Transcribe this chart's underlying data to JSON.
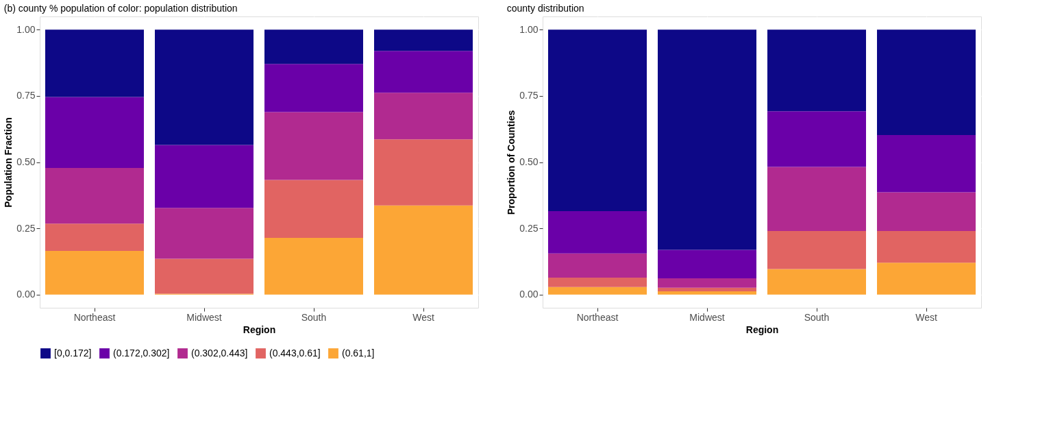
{
  "chart_data": [
    {
      "type": "bar",
      "title": "(b) county % population of color: population distribution",
      "xlabel": "Region",
      "ylabel": "Population Fraction",
      "categories": [
        "Northeast",
        "Midwest",
        "South",
        "West"
      ],
      "stacked": true,
      "ylim": [
        -0.05,
        1.05
      ],
      "yticks": [
        {
          "value": 0,
          "label": "0.00"
        },
        {
          "value": 0.25,
          "label": "0.25"
        },
        {
          "value": 0.5,
          "label": "0.50"
        },
        {
          "value": 0.75,
          "label": "0.75"
        },
        {
          "value": 1,
          "label": "1.00"
        }
      ],
      "grid": true,
      "legend": "bottom",
      "series": [
        {
          "name": "(0.61,1]",
          "color": "#fca636",
          "values": [
            0.165,
            0.003,
            0.214,
            0.336
          ]
        },
        {
          "name": "(0.443,0.61]",
          "color": "#e16462",
          "values": [
            0.103,
            0.132,
            0.219,
            0.25
          ]
        },
        {
          "name": "(0.302,0.443]",
          "color": "#b12a90",
          "values": [
            0.21,
            0.192,
            0.256,
            0.176
          ]
        },
        {
          "name": "(0.172,0.302]",
          "color": "#6a00a8",
          "values": [
            0.268,
            0.238,
            0.182,
            0.158
          ]
        },
        {
          "name": "[0,0.172]",
          "color": "#0d0887",
          "values": [
            0.254,
            0.435,
            0.129,
            0.08
          ]
        }
      ]
    },
    {
      "type": "bar",
      "title": "county distribution",
      "xlabel": "Region",
      "ylabel": "Proportion of Counties",
      "categories": [
        "Northeast",
        "Midwest",
        "South",
        "West"
      ],
      "stacked": true,
      "ylim": [
        -0.05,
        1.05
      ],
      "yticks": [
        {
          "value": 0,
          "label": "0.00"
        },
        {
          "value": 0.25,
          "label": "0.25"
        },
        {
          "value": 0.5,
          "label": "0.50"
        },
        {
          "value": 0.75,
          "label": "0.75"
        },
        {
          "value": 1,
          "label": "1.00"
        }
      ],
      "grid": true,
      "legend": "bottom",
      "series": [
        {
          "name": "(0.61,1]",
          "color": "#fca636",
          "values": [
            0.028,
            0.012,
            0.096,
            0.12
          ]
        },
        {
          "name": "(0.443,0.61]",
          "color": "#e16462",
          "values": [
            0.036,
            0.014,
            0.144,
            0.12
          ]
        },
        {
          "name": "(0.302,0.443]",
          "color": "#b12a90",
          "values": [
            0.091,
            0.035,
            0.242,
            0.146
          ]
        },
        {
          "name": "(0.172,0.302]",
          "color": "#6a00a8",
          "values": [
            0.16,
            0.108,
            0.21,
            0.216
          ]
        },
        {
          "name": "[0,0.172]",
          "color": "#0d0887",
          "values": [
            0.685,
            0.831,
            0.308,
            0.398
          ]
        }
      ]
    }
  ]
}
